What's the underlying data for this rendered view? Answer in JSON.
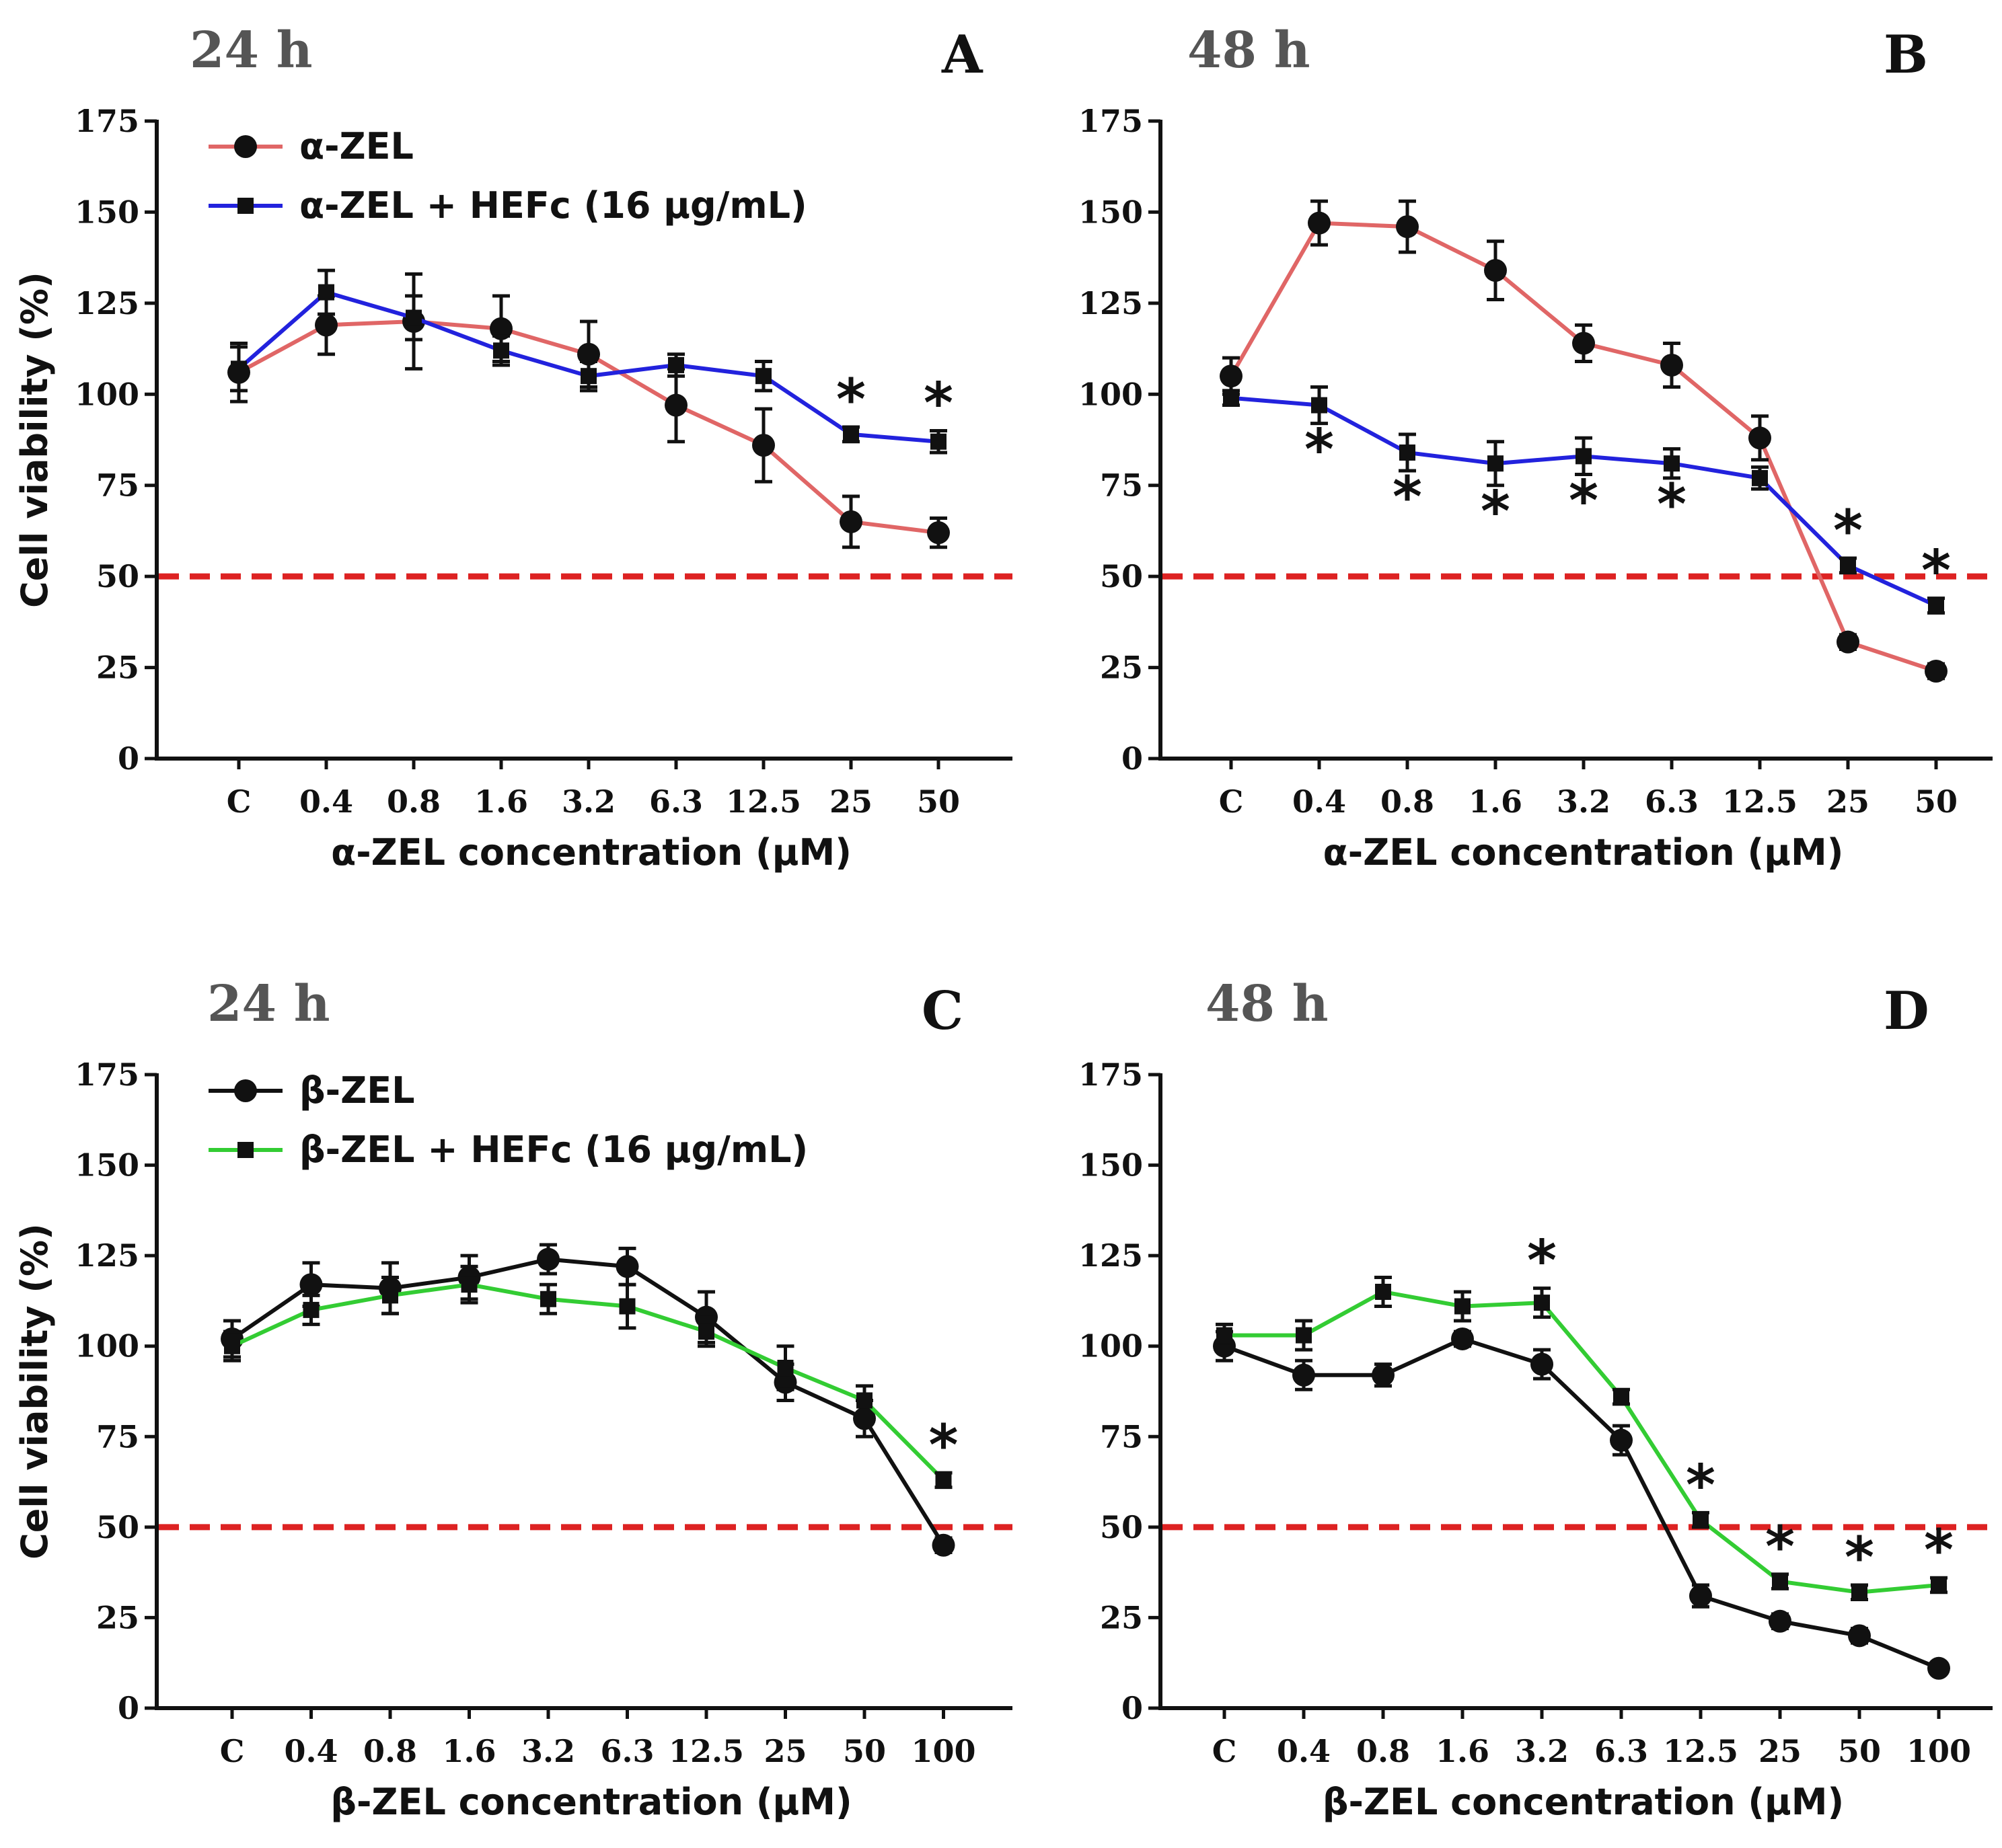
{
  "chart_data": [
    {
      "panel": "A",
      "type": "line",
      "title": "24 h",
      "xlabel": "α-ZEL concentration (μM)",
      "ylabel": "Cell viability (%)",
      "categories": [
        "C",
        "0.4",
        "0.8",
        "1.6",
        "3.2",
        "6.3",
        "12.5",
        "25",
        "50"
      ],
      "ylim": [
        0,
        175
      ],
      "yticks": [
        "0",
        "25",
        "50",
        "75",
        "100",
        "125",
        "150",
        "175"
      ],
      "reference_line": {
        "y": 50,
        "color": "#dd2222"
      },
      "legend": true,
      "series": [
        {
          "name": "α-ZEL",
          "marker": "circle",
          "color": "#e06666",
          "values": [
            106,
            119,
            120,
            118,
            111,
            97,
            86,
            65,
            62
          ],
          "errors": [
            8,
            8,
            13,
            9,
            9,
            10,
            10,
            7,
            4
          ]
        },
        {
          "name": "α-ZEL + HEFc (16 μg/mL)",
          "marker": "square",
          "color": "#2222dd",
          "values": [
            107,
            128,
            121,
            112,
            105,
            108,
            105,
            89,
            87
          ],
          "errors": [
            6,
            6,
            6,
            4,
            4,
            3,
            4,
            2,
            3
          ]
        }
      ],
      "significance": [
        {
          "index": 7,
          "label": "*"
        },
        {
          "index": 8,
          "label": "*"
        }
      ]
    },
    {
      "panel": "B",
      "type": "line",
      "title": "48 h",
      "xlabel": "α-ZEL concentration (μM)",
      "ylabel": "",
      "categories": [
        "C",
        "0.4",
        "0.8",
        "1.6",
        "3.2",
        "6.3",
        "12.5",
        "25",
        "50"
      ],
      "ylim": [
        0,
        175
      ],
      "yticks": [
        "0",
        "25",
        "50",
        "75",
        "100",
        "125",
        "150",
        "175"
      ],
      "reference_line": {
        "y": 50,
        "color": "#dd2222"
      },
      "legend": false,
      "series": [
        {
          "name": "α-ZEL",
          "marker": "circle",
          "color": "#e06666",
          "values": [
            105,
            147,
            146,
            134,
            114,
            108,
            88,
            32,
            24
          ],
          "errors": [
            5,
            6,
            7,
            8,
            5,
            6,
            6,
            2,
            2
          ]
        },
        {
          "name": "α-ZEL + HEFc (16 μg/mL)",
          "marker": "square",
          "color": "#2222dd",
          "values": [
            99,
            97,
            84,
            81,
            83,
            81,
            77,
            53,
            42
          ],
          "errors": [
            2,
            5,
            5,
            6,
            5,
            4,
            3,
            2,
            2
          ]
        }
      ],
      "significance": [
        {
          "index": 1,
          "label": "*"
        },
        {
          "index": 2,
          "label": "*"
        },
        {
          "index": 3,
          "label": "*"
        },
        {
          "index": 4,
          "label": "*"
        },
        {
          "index": 5,
          "label": "*"
        },
        {
          "index": 7,
          "label": "*"
        },
        {
          "index": 8,
          "label": "*"
        }
      ]
    },
    {
      "panel": "C",
      "type": "line",
      "title": "24 h",
      "xlabel": "β-ZEL concentration (μM)",
      "ylabel": "Cell viability (%)",
      "categories": [
        "C",
        "0.4",
        "0.8",
        "1.6",
        "3.2",
        "6.3",
        "12.5",
        "25",
        "50",
        "100"
      ],
      "ylim": [
        0,
        175
      ],
      "yticks": [
        "0",
        "25",
        "50",
        "75",
        "100",
        "125",
        "150",
        "175"
      ],
      "reference_line": {
        "y": 50,
        "color": "#dd2222"
      },
      "legend": true,
      "series": [
        {
          "name": "β-ZEL",
          "marker": "circle",
          "color": "#111111",
          "values": [
            102,
            117,
            116,
            119,
            124,
            122,
            108,
            90,
            80,
            45
          ],
          "errors": [
            5,
            6,
            7,
            6,
            4,
            5,
            7,
            5,
            5,
            2
          ]
        },
        {
          "name": "β-ZEL + HEFc (16 μg/mL)",
          "marker": "square",
          "color": "#33cc33",
          "values": [
            100,
            110,
            114,
            117,
            113,
            111,
            104,
            94,
            85,
            63
          ],
          "errors": [
            4,
            4,
            5,
            5,
            4,
            6,
            4,
            6,
            4,
            2
          ]
        }
      ],
      "significance": [
        {
          "index": 9,
          "label": "*"
        }
      ]
    },
    {
      "panel": "D",
      "type": "line",
      "title": "48 h",
      "xlabel": "β-ZEL concentration (μM)",
      "ylabel": "",
      "categories": [
        "C",
        "0.4",
        "0.8",
        "1.6",
        "3.2",
        "6.3",
        "12.5",
        "25",
        "50",
        "100"
      ],
      "ylim": [
        0,
        175
      ],
      "yticks": [
        "0",
        "25",
        "50",
        "75",
        "100",
        "125",
        "150",
        "175"
      ],
      "reference_line": {
        "y": 50,
        "color": "#dd2222"
      },
      "legend": false,
      "series": [
        {
          "name": "β-ZEL",
          "marker": "circle",
          "color": "#111111",
          "values": [
            100,
            92,
            92,
            102,
            95,
            74,
            31,
            24,
            20,
            11
          ],
          "errors": [
            4,
            4,
            3,
            2,
            4,
            4,
            3,
            2,
            2,
            1
          ]
        },
        {
          "name": "β-ZEL + HEFc (16 μg/mL)",
          "marker": "square",
          "color": "#33cc33",
          "values": [
            103,
            103,
            115,
            111,
            112,
            86,
            52,
            35,
            32,
            34
          ],
          "errors": [
            3,
            4,
            4,
            4,
            4,
            2,
            2,
            2,
            2,
            2
          ]
        }
      ],
      "significance": [
        {
          "index": 4,
          "label": "*"
        },
        {
          "index": 6,
          "label": "*"
        },
        {
          "index": 7,
          "label": "*"
        },
        {
          "index": 8,
          "label": "*"
        },
        {
          "index": 9,
          "label": "*"
        }
      ]
    }
  ]
}
